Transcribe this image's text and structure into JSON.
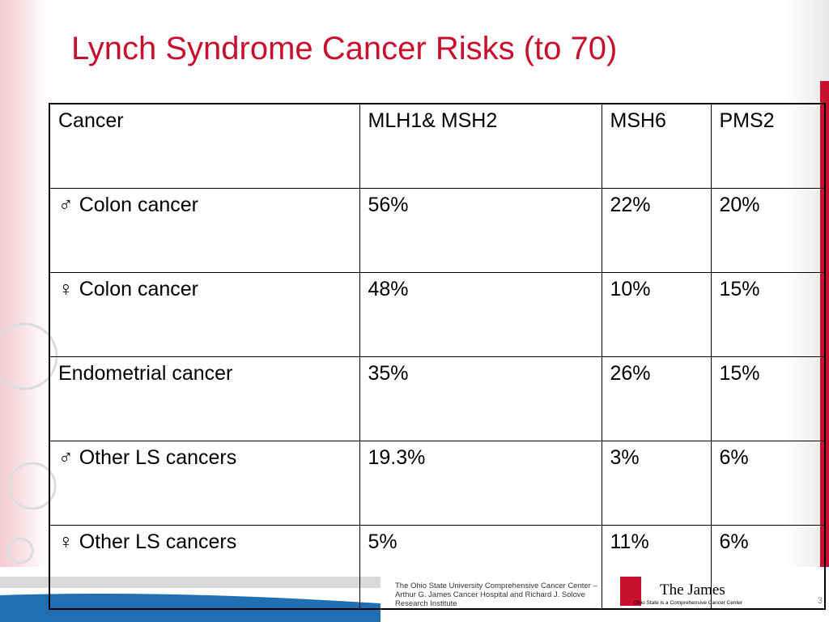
{
  "title": "Lynch Syndrome Cancer Risks (to 70)",
  "table": {
    "header": [
      "Cancer",
      "MLH1& MSH2",
      "MSH6",
      "PMS2"
    ],
    "rows": [
      [
        "♂ Colon cancer",
        "56%",
        "22%",
        "20%"
      ],
      [
        "♀ Colon cancer",
        "48%",
        "10%",
        "15%"
      ],
      [
        "Endometrial cancer",
        "35%",
        "26%",
        "15%"
      ],
      [
        "♂ Other LS cancers",
        "19.3%",
        "3%",
        "6%"
      ],
      [
        "♀ Other LS cancers",
        "5%",
        "11%",
        "6%"
      ]
    ]
  },
  "footer": {
    "institution": "The Ohio State University Comprehensive Cancer Center – Arthur G. James Cancer Hospital and Richard J. Solove Research Institute",
    "logo": "The James",
    "logo_sub": "Ohio State is a Comprehensive Cancer Center",
    "page_number": "3"
  }
}
